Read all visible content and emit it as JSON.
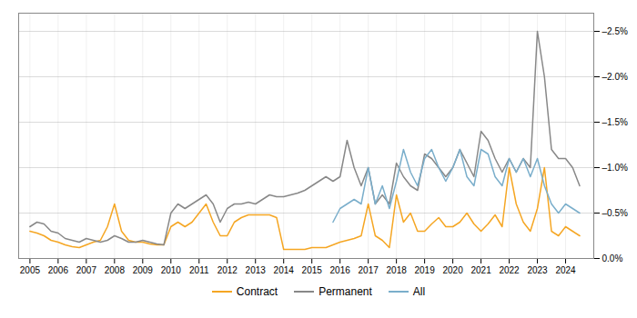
{
  "chart_data": {
    "type": "line",
    "x": [
      2005,
      2005.25,
      2005.5,
      2005.75,
      2006,
      2006.25,
      2006.5,
      2006.75,
      2007,
      2007.25,
      2007.5,
      2007.75,
      2008,
      2008.25,
      2008.5,
      2008.75,
      2009,
      2009.25,
      2009.5,
      2009.75,
      2010,
      2010.25,
      2010.5,
      2010.75,
      2011,
      2011.25,
      2011.5,
      2011.75,
      2012,
      2012.25,
      2012.5,
      2012.75,
      2013,
      2013.25,
      2013.5,
      2013.75,
      2014,
      2014.25,
      2014.5,
      2014.75,
      2015,
      2015.25,
      2015.5,
      2015.75,
      2016,
      2016.25,
      2016.5,
      2016.75,
      2017,
      2017.25,
      2017.5,
      2017.75,
      2018,
      2018.25,
      2018.5,
      2018.75,
      2019,
      2019.25,
      2019.5,
      2019.75,
      2020,
      2020.25,
      2020.5,
      2020.75,
      2021,
      2021.25,
      2021.5,
      2021.75,
      2022,
      2022.25,
      2022.5,
      2022.75,
      2023,
      2023.25,
      2023.5,
      2023.75,
      2024,
      2024.25,
      2024.5
    ],
    "series": [
      {
        "name": "Contract",
        "color": "#f5a623",
        "values": [
          0.003,
          0.0028,
          0.0025,
          0.002,
          0.0018,
          0.0015,
          0.0013,
          0.0012,
          0.0015,
          0.0018,
          0.002,
          0.0035,
          0.006,
          0.003,
          0.002,
          0.0018,
          0.0018,
          0.0016,
          0.0015,
          0.0015,
          0.0035,
          0.004,
          0.0035,
          0.004,
          0.005,
          0.006,
          0.004,
          0.0025,
          0.0025,
          0.004,
          0.0045,
          0.0048,
          0.0048,
          0.0048,
          0.0048,
          0.0045,
          0.001,
          0.001,
          0.001,
          0.001,
          0.0012,
          0.0012,
          0.0012,
          0.0015,
          0.0018,
          0.002,
          0.0022,
          0.0025,
          0.006,
          0.0025,
          0.002,
          0.0012,
          0.007,
          0.004,
          0.005,
          0.003,
          0.003,
          0.0038,
          0.0045,
          0.0035,
          0.0035,
          0.004,
          0.005,
          0.0038,
          0.003,
          0.0038,
          0.0048,
          0.0035,
          0.01,
          0.006,
          0.004,
          0.003,
          0.0055,
          0.01,
          0.003,
          0.0025,
          0.0035,
          0.003,
          0.0025
        ]
      },
      {
        "name": "Permanent",
        "color": "#888888",
        "values": [
          0.0035,
          0.004,
          0.0038,
          0.003,
          0.0028,
          0.0022,
          0.002,
          0.0018,
          0.0022,
          0.002,
          0.0018,
          0.002,
          0.0025,
          0.0022,
          0.0018,
          0.0018,
          0.002,
          0.0018,
          0.0016,
          0.0015,
          0.005,
          0.006,
          0.0055,
          0.006,
          0.0065,
          0.007,
          0.006,
          0.004,
          0.0055,
          0.006,
          0.006,
          0.0062,
          0.006,
          0.0065,
          0.007,
          0.0068,
          0.0068,
          0.007,
          0.0072,
          0.0075,
          0.008,
          0.0085,
          0.009,
          0.0085,
          0.009,
          0.013,
          0.01,
          0.008,
          0.01,
          0.006,
          0.007,
          0.006,
          0.0105,
          0.009,
          0.008,
          0.0075,
          0.0115,
          0.011,
          0.01,
          0.009,
          0.01,
          0.012,
          0.0105,
          0.009,
          0.014,
          0.013,
          0.011,
          0.0095,
          0.011,
          0.0095,
          0.011,
          0.01,
          0.025,
          0.02,
          0.012,
          0.011,
          0.011,
          0.01,
          0.008
        ]
      },
      {
        "name": "All",
        "color": "#7aaecb",
        "values": [
          null,
          null,
          null,
          null,
          null,
          null,
          null,
          null,
          null,
          null,
          null,
          null,
          null,
          null,
          null,
          null,
          null,
          null,
          null,
          null,
          null,
          null,
          null,
          null,
          null,
          null,
          null,
          null,
          null,
          null,
          null,
          null,
          null,
          null,
          null,
          null,
          null,
          null,
          null,
          null,
          null,
          null,
          null,
          0.004,
          0.0055,
          0.006,
          0.0065,
          0.006,
          0.01,
          0.006,
          0.008,
          0.0055,
          0.0085,
          0.012,
          0.0095,
          0.008,
          0.011,
          0.012,
          0.01,
          0.0085,
          0.01,
          0.012,
          0.009,
          0.008,
          0.012,
          0.0115,
          0.009,
          0.008,
          0.011,
          0.0095,
          0.011,
          0.009,
          0.011,
          0.008,
          0.006,
          0.005,
          0.006,
          0.0055,
          0.005
        ]
      }
    ],
    "xlim": [
      2004.6,
      2025.0
    ],
    "xticks": [
      2005,
      2006,
      2007,
      2008,
      2009,
      2010,
      2011,
      2012,
      2013,
      2014,
      2015,
      2016,
      2017,
      2018,
      2019,
      2020,
      2021,
      2022,
      2023,
      2024
    ],
    "ylim": [
      0.0,
      0.027
    ],
    "yticks": [
      {
        "value": 0.0,
        "label": "0.0%"
      },
      {
        "value": 0.005,
        "label": "–0.5%"
      },
      {
        "value": 0.01,
        "label": "–1.0%"
      },
      {
        "value": 0.015,
        "label": "–1.5%"
      },
      {
        "value": 0.02,
        "label": "–2.0%"
      },
      {
        "value": 0.025,
        "label": "–2.5%"
      }
    ],
    "grid": true,
    "legend": "bottom"
  }
}
